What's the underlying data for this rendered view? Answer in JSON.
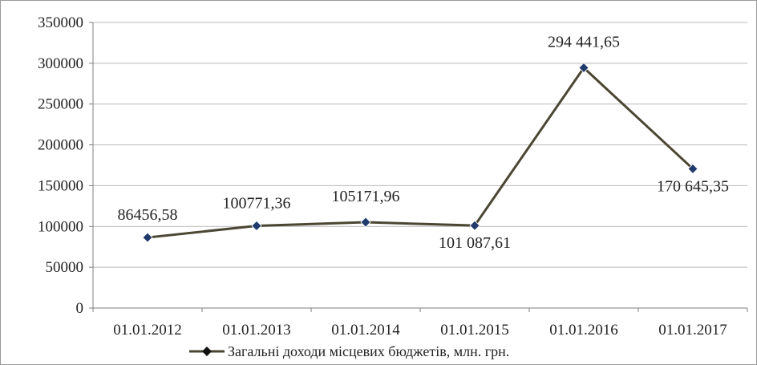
{
  "chart_data": {
    "type": "line",
    "categories": [
      "01.01.2012",
      "01.01.2013",
      "01.01.2014",
      "01.01.2015",
      "01.01.2016",
      "01.01.2017"
    ],
    "series": [
      {
        "name": "Загальні доходи місцевих бюджетів, млн. грн.",
        "values": [
          86456.58,
          100771.36,
          105171.96,
          101087.61,
          294441.65,
          170645.35
        ],
        "labels": [
          "86456,58",
          "100771,36",
          "105171,96",
          "101 087,61",
          "294 441,65",
          "170 645,35"
        ]
      }
    ],
    "yticks": [
      "0",
      "50000",
      "100000",
      "150000",
      "200000",
      "250000",
      "300000",
      "350000"
    ],
    "ylim": [
      0,
      350000
    ],
    "grid": true,
    "legend": "bottom",
    "line_color": "#4a4633",
    "marker_color": "#1f3a6b"
  }
}
